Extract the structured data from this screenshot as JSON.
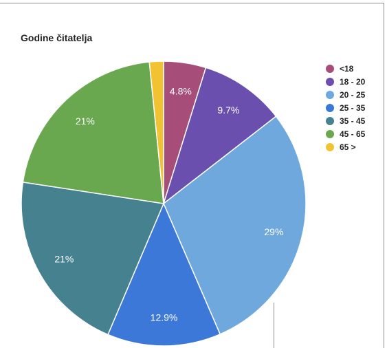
{
  "chart_data": {
    "type": "pie",
    "title": "Godine čitatelja",
    "legend_position": "right",
    "slices": [
      {
        "label": "<18",
        "value": 4.8,
        "display": "4.8%",
        "color": "#a64d79"
      },
      {
        "label": "18 - 20",
        "value": 9.7,
        "display": "9.7%",
        "color": "#6b4fae"
      },
      {
        "label": "20 - 25",
        "value": 29.0,
        "display": "29%",
        "color": "#6fa8dc"
      },
      {
        "label": "25 - 35",
        "value": 12.9,
        "display": "12.9%",
        "color": "#3c78d8"
      },
      {
        "label": "35 - 45",
        "value": 21.0,
        "display": "21%",
        "color": "#45818e"
      },
      {
        "label": "45 - 65",
        "value": 21.0,
        "display": "21%",
        "color": "#6aa84f"
      },
      {
        "label": "65 >",
        "value": 1.6,
        "display": "",
        "color": "#f1c232"
      }
    ]
  }
}
